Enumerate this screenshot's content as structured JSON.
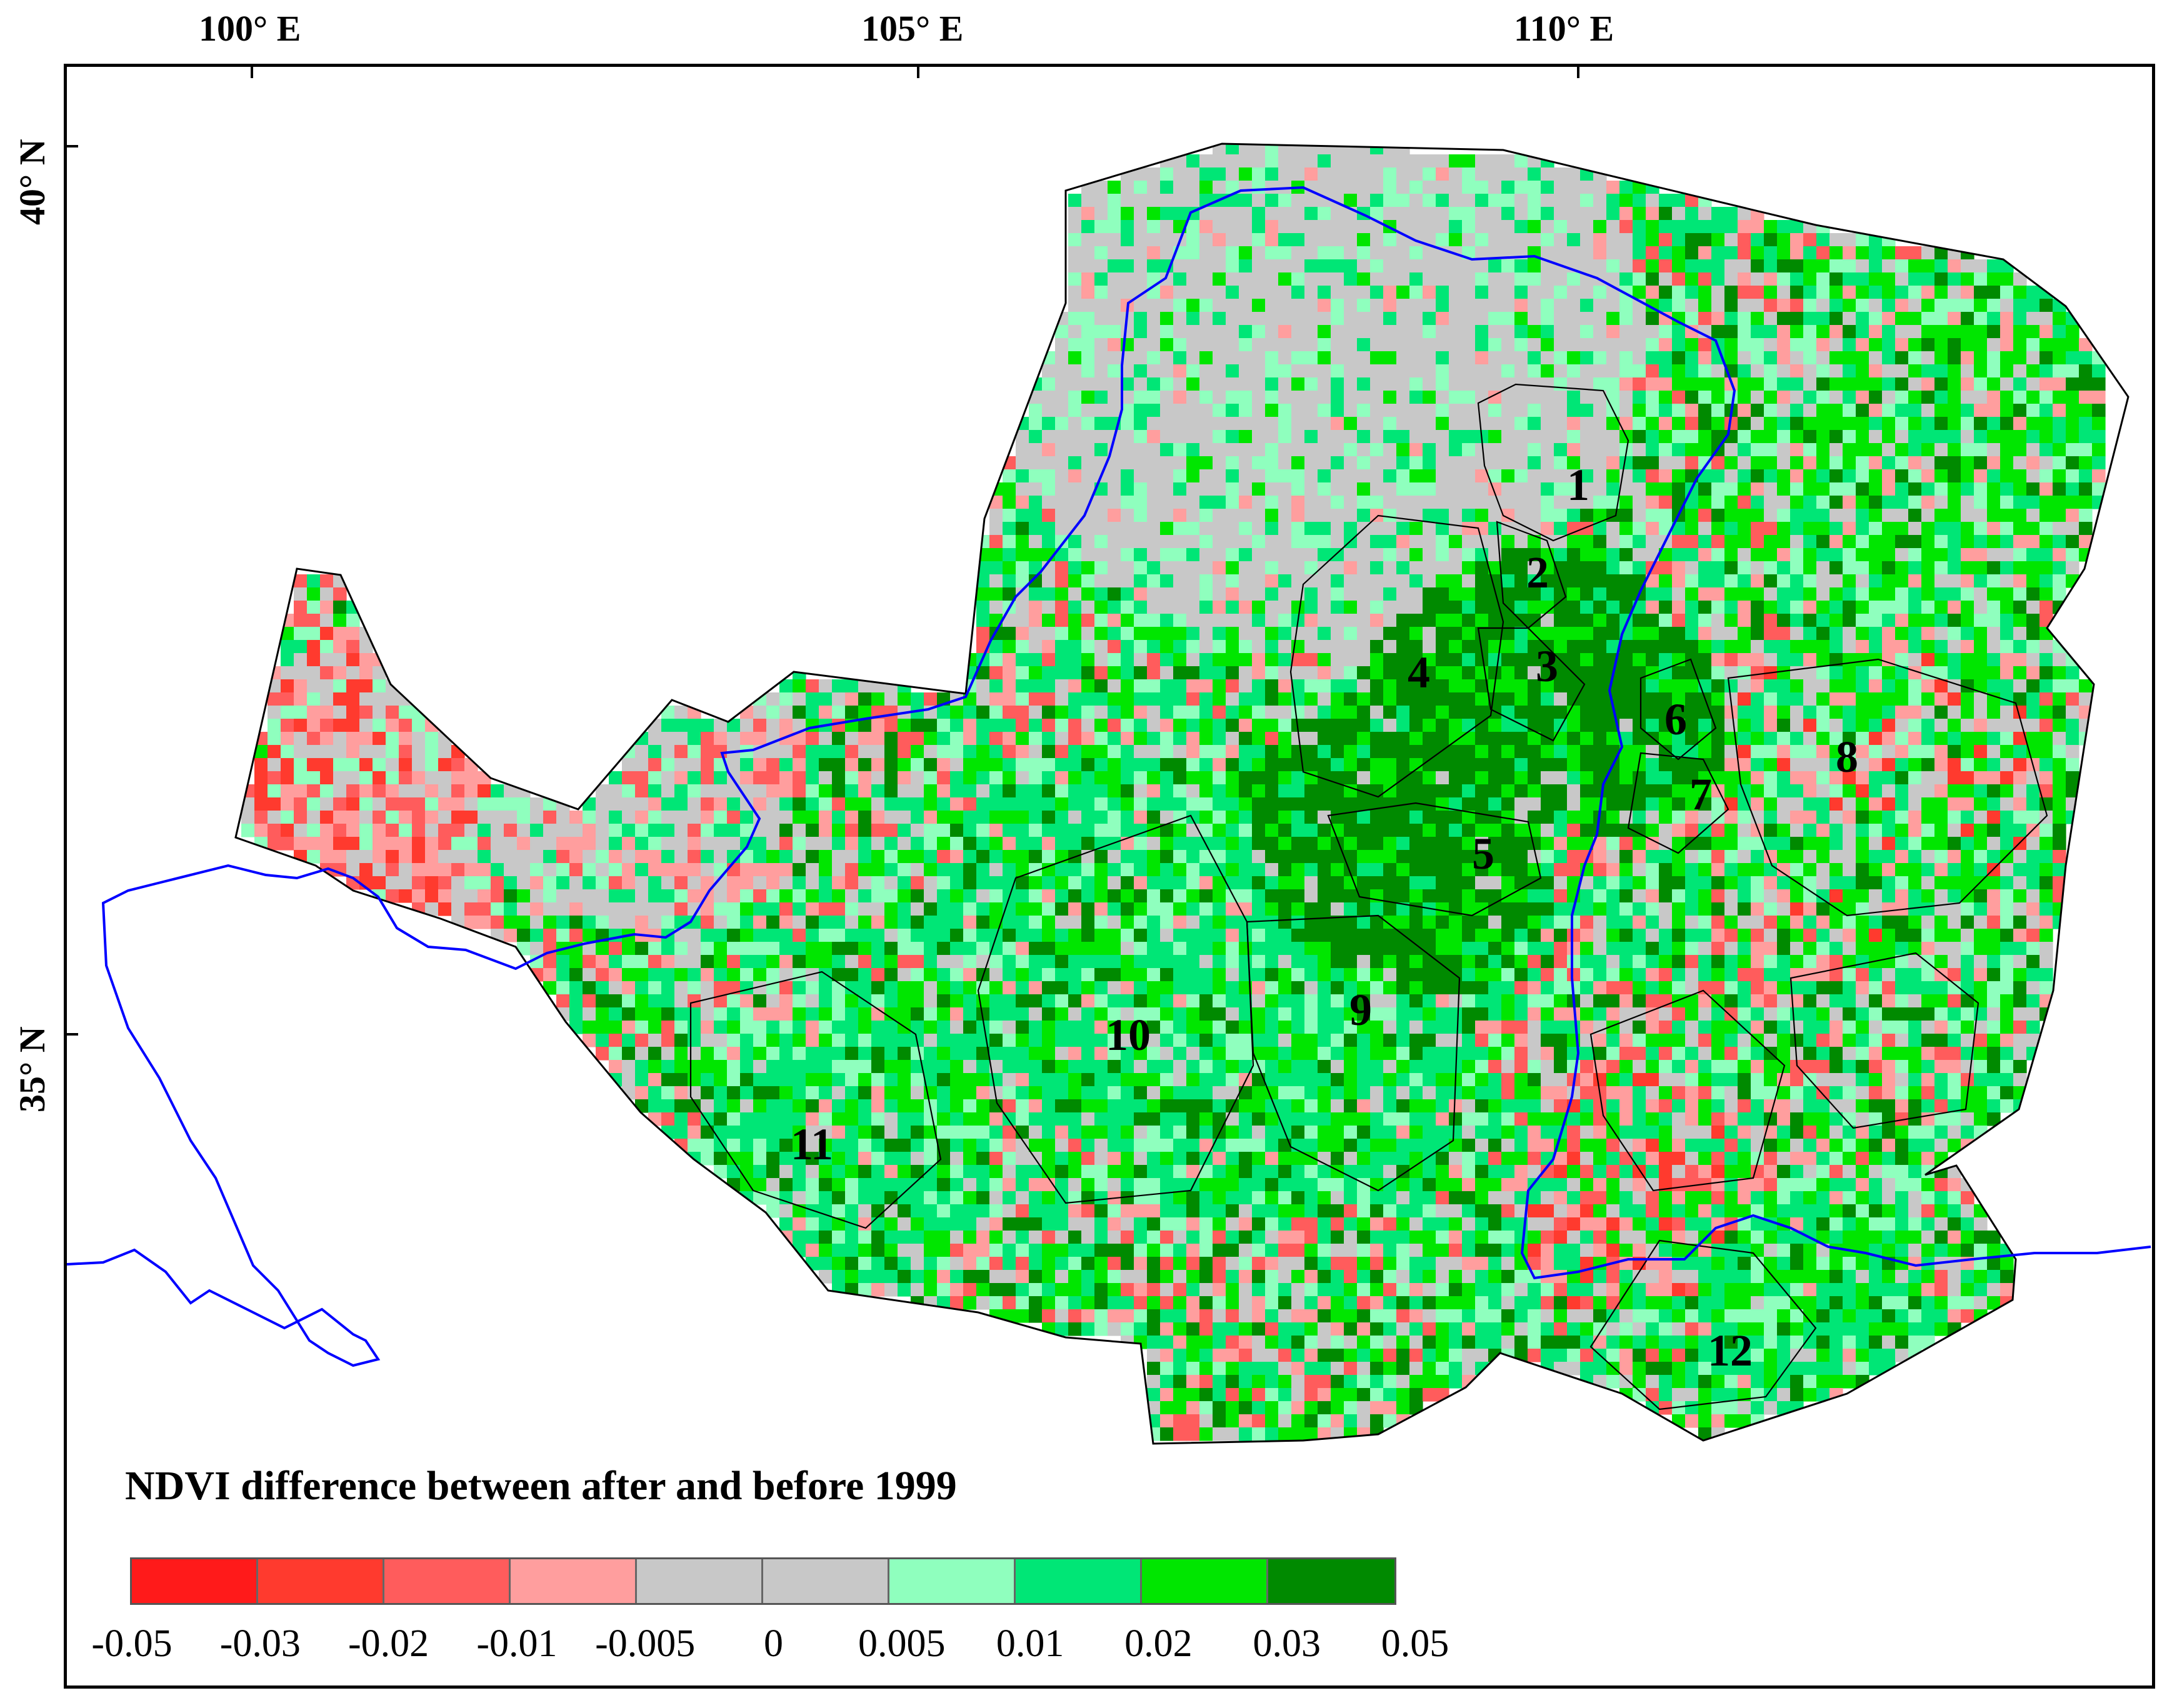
{
  "axes": {
    "longitude_labels": [
      "100° E",
      "105° E",
      "110° E"
    ],
    "latitude_labels": [
      "40° N",
      "35° N"
    ]
  },
  "regions": {
    "labels": [
      "1",
      "2",
      "3",
      "4",
      "5",
      "6",
      "7",
      "8",
      "9",
      "10",
      "11",
      "12"
    ]
  },
  "legend": {
    "title": "NDVI difference between after and before 1999",
    "breaks": [
      "-0.05",
      "-0.03",
      "-0.02",
      "-0.01",
      "-0.005",
      "0",
      "0.005",
      "0.01",
      "0.02",
      "0.03",
      "0.05"
    ],
    "classes": [
      {
        "range": "-0.05 to -0.03",
        "color": "#ff1a1a"
      },
      {
        "range": "-0.03 to -0.02",
        "color": "#ff3a2e"
      },
      {
        "range": "-0.02 to -0.01",
        "color": "#ff5c5c"
      },
      {
        "range": "-0.01 to -0.005",
        "color": "#ff9e9e"
      },
      {
        "range": "-0.005 to 0",
        "color": "#c8c8c8"
      },
      {
        "range": "0 to 0.005",
        "color": "#c8c8c8"
      },
      {
        "range": "0.005 to 0.01",
        "color": "#8fffbe"
      },
      {
        "range": "0.01 to 0.02",
        "color": "#00e676"
      },
      {
        "range": "0.02 to 0.03",
        "color": "#00e600"
      },
      {
        "range": "0.03 to 0.05",
        "color": "#008a00"
      }
    ]
  },
  "colors": {
    "river": "#0000ff",
    "boundary": "#000000",
    "frame": "#000000"
  }
}
